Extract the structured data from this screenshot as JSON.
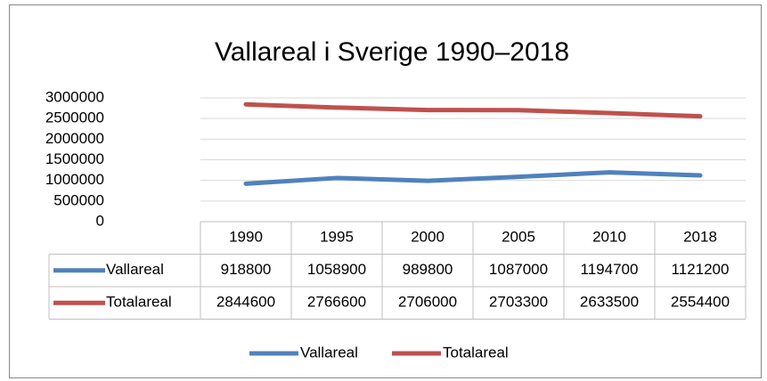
{
  "chart_data": {
    "type": "line",
    "title": "Vallareal i Sverige 1990–2018",
    "categories": [
      "1990",
      "1995",
      "2000",
      "2005",
      "2010",
      "2018"
    ],
    "series": [
      {
        "name": "Vallareal",
        "color": "#4f81bd",
        "values": [
          918800,
          1058900,
          989800,
          1087000,
          1194700,
          1121200
        ]
      },
      {
        "name": "Totalareal",
        "color": "#c0504d",
        "values": [
          2844600,
          2766600,
          2706000,
          2703300,
          2633500,
          2554400
        ]
      }
    ],
    "ylim": [
      0,
      3000000
    ],
    "yticks": [
      0,
      500000,
      1000000,
      1500000,
      2000000,
      2500000,
      3000000
    ],
    "grid": true,
    "legend": "bottom"
  }
}
